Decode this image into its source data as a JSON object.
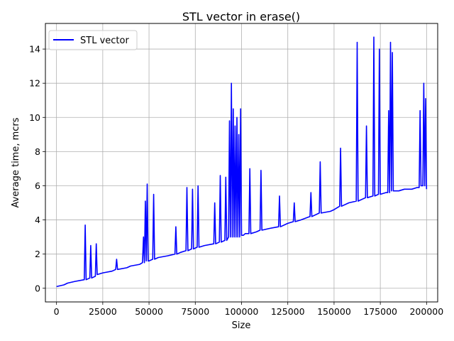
{
  "chart_data": {
    "type": "line",
    "title": "STL vector in erase()",
    "xlabel": "Size",
    "ylabel": "Average time, mcrs",
    "xlim": [
      -6000,
      206000
    ],
    "ylim": [
      -0.8,
      15.5
    ],
    "x_ticks": [
      0,
      25000,
      50000,
      75000,
      100000,
      125000,
      150000,
      175000,
      200000
    ],
    "y_ticks": [
      0,
      2,
      4,
      6,
      8,
      10,
      12,
      14
    ],
    "grid": true,
    "legend_position": "top-left",
    "series": [
      {
        "name": "STL vector",
        "color": "#0000ff",
        "x": [
          0,
          4000,
          6000,
          10000,
          15000,
          15500,
          16000,
          18000,
          18500,
          19000,
          21000,
          21500,
          22000,
          25000,
          30000,
          32000,
          32500,
          33000,
          38000,
          40000,
          45000,
          46500,
          47000,
          47500,
          48000,
          48500,
          49000,
          49500,
          50000,
          52000,
          52500,
          53000,
          55000,
          60000,
          64000,
          64500,
          65000,
          67000,
          70000,
          70500,
          71000,
          73000,
          73500,
          74000,
          76000,
          76500,
          77000,
          80000,
          85000,
          85500,
          86000,
          88000,
          88500,
          89000,
          91000,
          91500,
          92000,
          93000,
          93500,
          94000,
          94500,
          95000,
          95500,
          96000,
          96500,
          97000,
          97500,
          98000,
          98500,
          99000,
          99500,
          100000,
          101000,
          102000,
          104000,
          104500,
          105000,
          108000,
          110000,
          110500,
          111000,
          115000,
          120000,
          120500,
          121000,
          125000,
          128000,
          128500,
          129000,
          132000,
          137000,
          137500,
          138000,
          142000,
          142500,
          143000,
          148000,
          150000,
          153000,
          153500,
          154000,
          158000,
          162000,
          162500,
          163000,
          167000,
          167500,
          168000,
          171000,
          171500,
          172000,
          174000,
          174500,
          175000,
          178000,
          179000,
          179500,
          180000,
          180500,
          181000,
          181500,
          182000,
          185000,
          188000,
          192000,
          195000,
          196000,
          196500,
          197000,
          198000,
          198500,
          199000,
          199500,
          200000
        ],
        "y": [
          0.1,
          0.2,
          0.3,
          0.4,
          0.5,
          3.7,
          0.5,
          0.6,
          2.5,
          0.6,
          0.7,
          2.6,
          0.8,
          0.9,
          1.0,
          1.1,
          1.7,
          1.1,
          1.2,
          1.3,
          1.4,
          1.5,
          3.0,
          1.5,
          5.1,
          1.6,
          6.1,
          1.6,
          1.6,
          1.7,
          5.5,
          1.7,
          1.8,
          1.9,
          2.0,
          3.6,
          2.0,
          2.1,
          2.2,
          5.9,
          2.2,
          2.3,
          5.8,
          2.3,
          2.4,
          6.0,
          2.4,
          2.5,
          2.6,
          5.0,
          2.6,
          2.7,
          6.6,
          2.7,
          2.8,
          6.5,
          2.8,
          3.0,
          9.8,
          3.0,
          12.0,
          3.0,
          10.5,
          3.0,
          9.5,
          3.0,
          10.0,
          3.0,
          9.0,
          3.0,
          10.5,
          3.1,
          3.1,
          3.2,
          3.2,
          7.0,
          3.2,
          3.3,
          3.4,
          6.9,
          3.4,
          3.5,
          3.6,
          5.4,
          3.6,
          3.8,
          3.9,
          5.0,
          3.9,
          4.0,
          4.2,
          5.6,
          4.2,
          4.4,
          7.4,
          4.4,
          4.5,
          4.6,
          4.8,
          8.2,
          4.8,
          5.0,
          5.1,
          14.4,
          5.1,
          5.3,
          9.5,
          5.3,
          5.4,
          14.7,
          5.4,
          5.5,
          14.0,
          5.5,
          5.6,
          5.6,
          10.4,
          5.6,
          14.4,
          5.7,
          13.8,
          5.7,
          5.7,
          5.8,
          5.8,
          5.9,
          5.9,
          10.4,
          6.0,
          6.0,
          12.0,
          6.0,
          11.1,
          5.8
        ]
      }
    ]
  }
}
